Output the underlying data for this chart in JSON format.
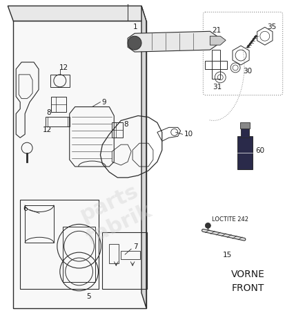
{
  "bg_color": "#ffffff",
  "fig_width": 4.14,
  "fig_height": 4.77,
  "dpi": 100,
  "watermark_text": "parts•fabrik",
  "vorne_front_text": "VORNE\nFRONT",
  "loctite_text": "LOCTITE 242",
  "line_color": "#2a2a2a",
  "text_color": "#1a1a1a",
  "label_fontsize": 7.5,
  "panel_face": "#f8f8f8",
  "panel_top_face": "#e8e8e8",
  "panel_right_face": "#d8d8d8"
}
